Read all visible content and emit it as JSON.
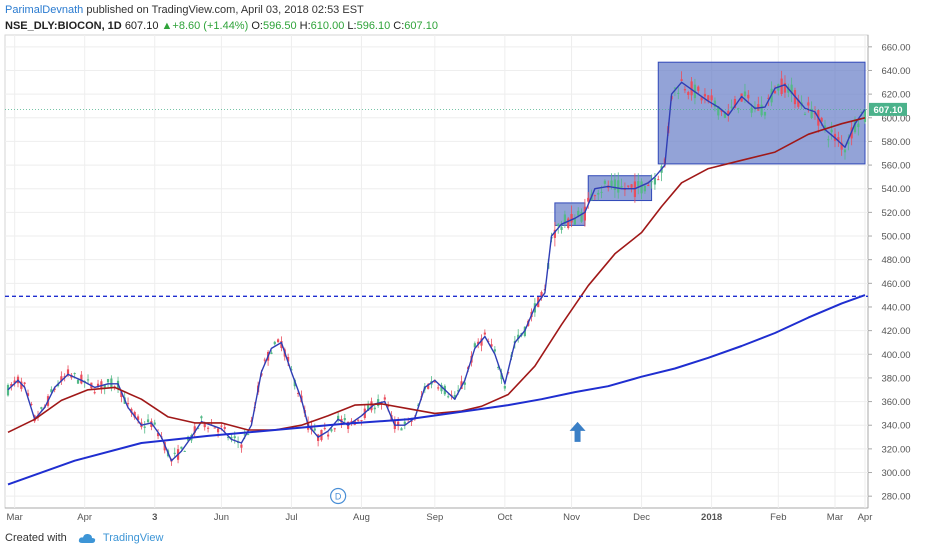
{
  "header": {
    "author": "ParimalDevnath",
    "published_text": "published on TradingView.com, April 03, 2018 02:53 EST"
  },
  "ohlc": {
    "symbol": "NSE_DLY:BIOCON, 1D",
    "last": "607.10",
    "change": "+8.60 (+1.44%)",
    "o_label": "O:",
    "o": "596.50",
    "h_label": "H:",
    "h": "610.00",
    "l_label": "L:",
    "l": "596.10",
    "c_label": "C:",
    "c": "607.10"
  },
  "footer": {
    "created_with": "Created with",
    "brand": "TradingView"
  },
  "colors": {
    "up": "#53b987",
    "down": "#eb4d5c",
    "ma_fast": "#2f3db5",
    "ma_mid": "#a01818",
    "ma_slow": "#1f2ed0",
    "box_fill": "#6a7fc8",
    "box_stroke": "#3048b8",
    "hline": "#1f2ed0",
    "price_tag": "#4bb28b",
    "arrow": "#3a7fc6"
  },
  "chart_data": {
    "type": "candlestick",
    "y_range": [
      270,
      670
    ],
    "y_ticks": [
      280,
      300,
      320,
      340,
      360,
      380,
      400,
      420,
      440,
      460,
      480,
      500,
      520,
      540,
      560,
      580,
      600,
      620,
      640,
      660
    ],
    "x_ticks": [
      "Mar",
      "Apr",
      "3",
      "Jun",
      "Jul",
      "Aug",
      "Sep",
      "Oct",
      "Nov",
      "Dec",
      "2018",
      "Feb",
      "Mar",
      "Apr"
    ],
    "last_price_label": "607.10",
    "last_price": 607.1,
    "horizontal_line": 449,
    "marker_label": "D",
    "series": [
      {
        "points": [
          [
            0,
            370
          ],
          [
            3,
            378
          ],
          [
            5,
            372
          ],
          [
            8,
            345
          ],
          [
            11,
            355
          ],
          [
            14,
            372
          ],
          [
            18,
            383
          ],
          [
            22,
            378
          ],
          [
            26,
            372
          ],
          [
            30,
            375
          ],
          [
            33,
            375
          ],
          [
            36,
            355
          ],
          [
            40,
            340
          ],
          [
            43,
            342
          ],
          [
            46,
            330
          ],
          [
            49,
            310
          ],
          [
            52,
            318
          ],
          [
            55,
            330
          ],
          [
            58,
            343
          ],
          [
            61,
            340
          ],
          [
            64,
            337
          ],
          [
            67,
            328
          ],
          [
            70,
            325
          ],
          [
            73,
            340
          ],
          [
            76,
            385
          ],
          [
            79,
            405
          ],
          [
            82,
            410
          ],
          [
            85,
            385
          ],
          [
            88,
            362
          ],
          [
            90,
            340
          ],
          [
            93,
            330
          ],
          [
            96,
            335
          ],
          [
            99,
            345
          ],
          [
            102,
            340
          ],
          [
            106,
            348
          ],
          [
            110,
            358
          ],
          [
            113,
            360
          ],
          [
            116,
            340
          ],
          [
            119,
            340
          ],
          [
            122,
            346
          ],
          [
            125,
            372
          ],
          [
            128,
            378
          ],
          [
            131,
            370
          ],
          [
            134,
            362
          ],
          [
            137,
            378
          ],
          [
            140,
            405
          ],
          [
            143,
            415
          ],
          [
            146,
            400
          ],
          [
            149,
            375
          ],
          [
            152,
            410
          ],
          [
            155,
            420
          ],
          [
            158,
            440
          ],
          [
            161,
            452
          ],
          [
            163,
            500
          ],
          [
            166,
            510
          ],
          [
            170,
            515
          ],
          [
            173,
            520
          ],
          [
            176,
            540
          ],
          [
            180,
            542
          ],
          [
            184,
            540
          ],
          [
            188,
            540
          ],
          [
            192,
            545
          ],
          [
            194,
            550
          ],
          [
            197,
            560
          ],
          [
            199,
            620
          ],
          [
            202,
            630
          ],
          [
            206,
            622
          ],
          [
            210,
            614
          ],
          [
            213,
            609
          ],
          [
            216,
            602
          ],
          [
            220,
            618
          ],
          [
            224,
            608
          ],
          [
            227,
            609
          ],
          [
            230,
            625
          ],
          [
            233,
            628
          ],
          [
            236,
            618
          ],
          [
            239,
            608
          ],
          [
            242,
            605
          ],
          [
            245,
            590
          ],
          [
            248,
            583
          ],
          [
            251,
            575
          ],
          [
            254,
            595
          ],
          [
            257,
            607.1
          ]
        ]
      },
      {
        "points": [
          [
            0,
            334
          ],
          [
            8,
            345
          ],
          [
            16,
            361
          ],
          [
            24,
            370
          ],
          [
            32,
            372
          ],
          [
            40,
            362
          ],
          [
            48,
            347
          ],
          [
            56,
            342
          ],
          [
            64,
            342
          ],
          [
            72,
            336
          ],
          [
            80,
            336
          ],
          [
            88,
            340
          ],
          [
            96,
            348
          ],
          [
            104,
            357
          ],
          [
            112,
            358
          ],
          [
            120,
            354
          ],
          [
            128,
            350
          ],
          [
            136,
            352
          ],
          [
            142,
            356
          ],
          [
            150,
            366
          ],
          [
            158,
            390
          ],
          [
            166,
            425
          ],
          [
            174,
            458
          ],
          [
            182,
            485
          ],
          [
            190,
            503
          ],
          [
            196,
            525
          ],
          [
            202,
            545
          ],
          [
            210,
            557
          ],
          [
            220,
            564
          ],
          [
            230,
            571
          ],
          [
            240,
            586
          ],
          [
            250,
            595
          ],
          [
            257,
            600
          ]
        ]
      },
      {
        "points": [
          [
            0,
            290
          ],
          [
            20,
            310
          ],
          [
            40,
            325
          ],
          [
            60,
            331
          ],
          [
            80,
            336
          ],
          [
            100,
            341
          ],
          [
            120,
            345
          ],
          [
            140,
            353
          ],
          [
            150,
            357
          ],
          [
            160,
            362
          ],
          [
            170,
            368
          ],
          [
            180,
            373
          ],
          [
            190,
            381
          ],
          [
            200,
            388
          ],
          [
            210,
            397
          ],
          [
            220,
            407
          ],
          [
            230,
            418
          ],
          [
            240,
            431
          ],
          [
            250,
            443
          ],
          [
            257,
            450
          ]
        ]
      }
    ],
    "boxes": [
      {
        "x0": 164,
        "x1": 173,
        "y0": 509,
        "y1": 528
      },
      {
        "x0": 174,
        "x1": 193,
        "y0": 530,
        "y1": 551
      },
      {
        "x0": 195,
        "x1": 257,
        "y0": 561,
        "y1": 647
      }
    ]
  }
}
